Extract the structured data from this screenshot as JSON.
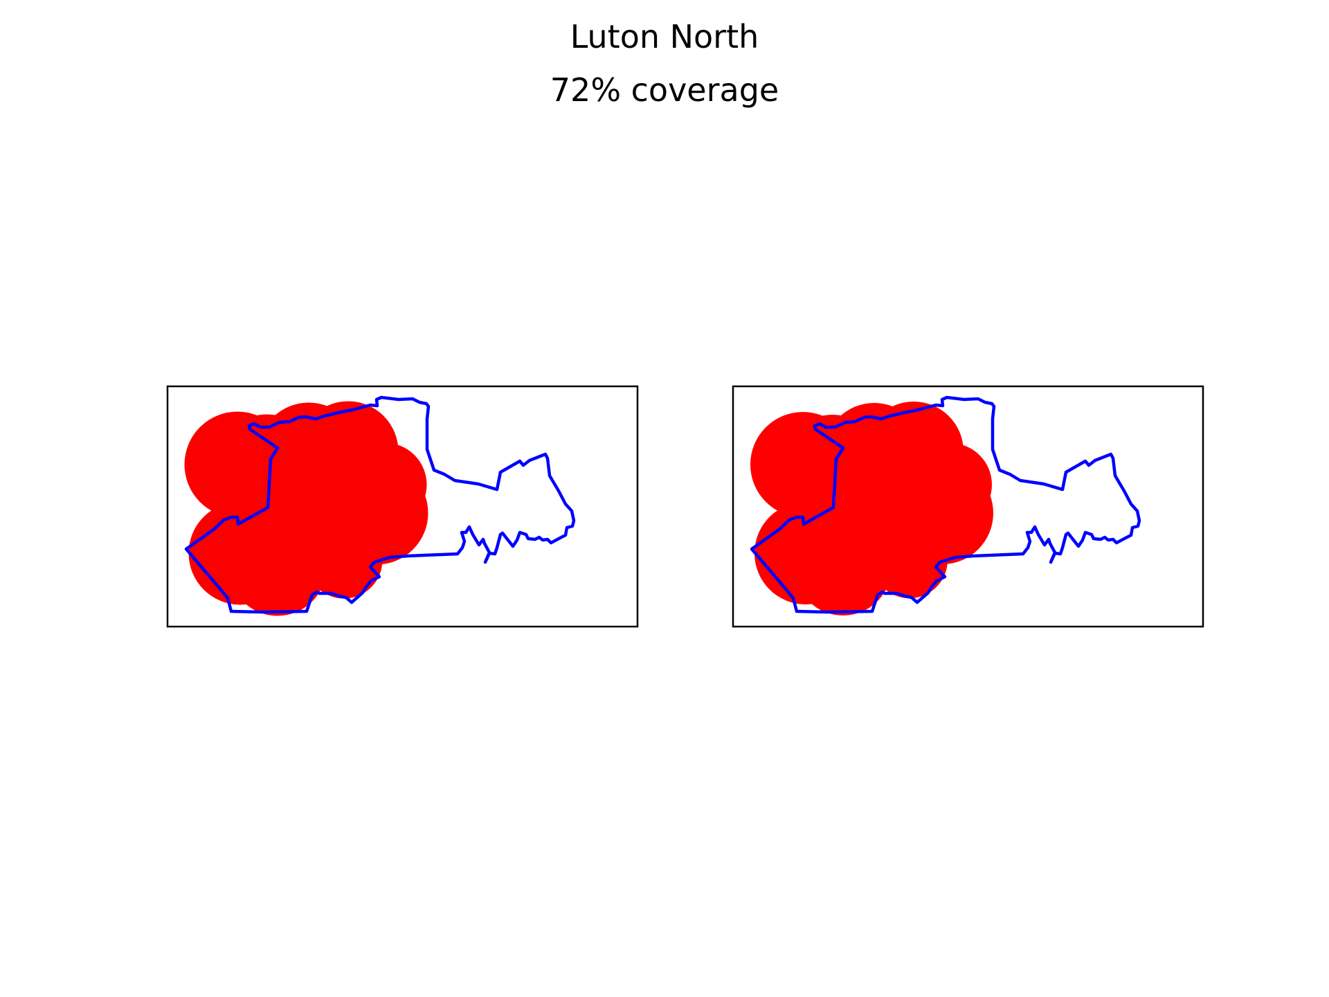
{
  "figure": {
    "constituency": "Luton North",
    "coverage_label": "72% coverage",
    "coverage_percent": 72
  },
  "colors": {
    "boundary": "#0000ff",
    "coverage": "#ff0000",
    "frame": "#000000",
    "background": "#ffffff"
  },
  "panels": [
    {
      "name": "individual-coverage-circles",
      "style": "outlined-overlapping-circles"
    },
    {
      "name": "merged-coverage-area",
      "style": "solid-union"
    }
  ]
}
